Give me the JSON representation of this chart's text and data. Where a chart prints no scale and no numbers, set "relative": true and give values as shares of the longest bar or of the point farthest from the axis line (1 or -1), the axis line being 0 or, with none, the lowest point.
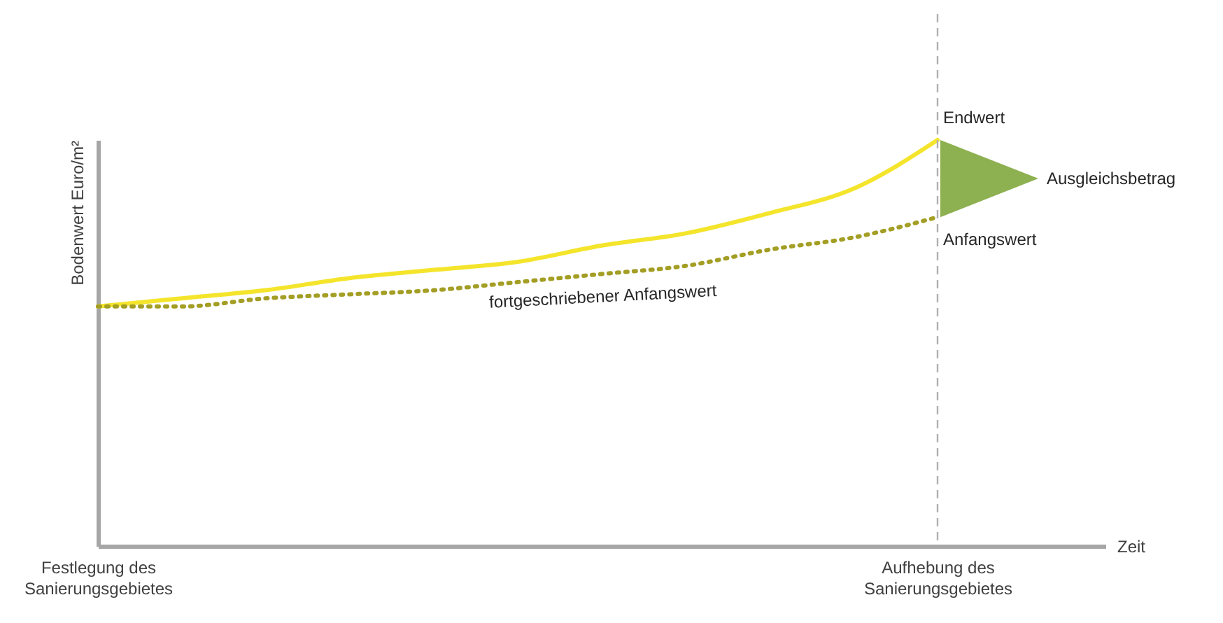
{
  "chart_data": {
    "type": "line",
    "relative": true,
    "xlabel": "Zeit",
    "ylabel": "Bodenwert Euro/m²",
    "categories": [
      "Festlegung des Sanierungsgebietes",
      null,
      null,
      null,
      null,
      null,
      null,
      null,
      null,
      null,
      "Aufhebung des Sanierungsgebietes",
      null,
      null
    ],
    "series": [
      {
        "color": "#f4e52c",
        "line_style": "solid",
        "values": [
          0.59,
          0.61,
          0.63,
          0.66,
          0.68,
          0.7,
          0.74,
          0.77,
          0.82,
          0.88,
          1.0,
          null,
          null
        ]
      },
      {
        "name": "fortgeschriebener Anfangswert",
        "color": "#a39e24",
        "line_style": "dotted",
        "values": [
          0.59,
          0.59,
          0.61,
          0.62,
          0.63,
          0.65,
          0.67,
          0.69,
          0.73,
          0.76,
          0.81,
          null,
          null
        ]
      }
    ],
    "annotations": [
      {
        "text": "Endwert",
        "x": "Aufhebung des Sanierungsgebietes",
        "y": 1.0
      },
      {
        "text": "Anfangswert",
        "x": "Aufhebung des Sanierungsgebietes",
        "y": 0.81
      },
      "Ausgleichsbetrag"
    ],
    "ref_lines": [
      {
        "axis": "x",
        "value": "Aufhebung des Sanierungsgebietes",
        "color": "#b0b0b0",
        "line_style": "dashed"
      }
    ],
    "grid": false,
    "marker": "none"
  }
}
